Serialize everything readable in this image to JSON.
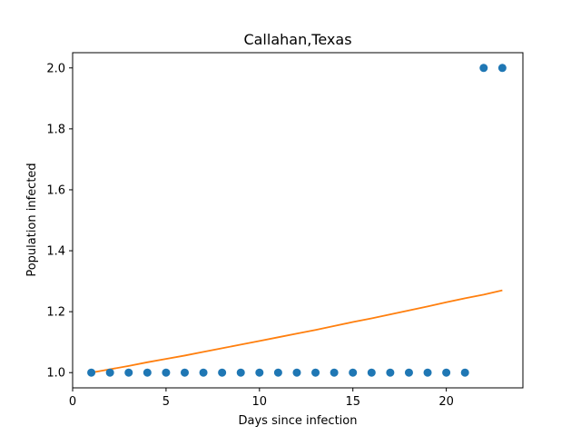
{
  "chart_data": {
    "type": "scatter",
    "title": "Callahan,Texas",
    "xlabel": "Days since infection",
    "ylabel": "Population infected",
    "xlim": [
      0,
      24.1
    ],
    "ylim": [
      0.95,
      2.05
    ],
    "xticks": [
      0,
      5,
      10,
      15,
      20
    ],
    "yticks": [
      1.0,
      1.2,
      1.4,
      1.6,
      1.8,
      2.0
    ],
    "xtick_labels": [
      "0",
      "5",
      "10",
      "15",
      "20"
    ],
    "ytick_labels": [
      "1.0",
      "1.2",
      "1.4",
      "1.6",
      "1.8",
      "2.0"
    ],
    "grid": false,
    "series": [
      {
        "kind": "scatter",
        "color": "#1f77b4",
        "x": [
          1,
          2,
          3,
          4,
          5,
          6,
          7,
          8,
          9,
          10,
          11,
          12,
          13,
          14,
          15,
          16,
          17,
          18,
          19,
          20,
          21,
          22,
          23
        ],
        "y": [
          1,
          1,
          1,
          1,
          1,
          1,
          1,
          1,
          1,
          1,
          1,
          1,
          1,
          1,
          1,
          1,
          1,
          1,
          1,
          1,
          1,
          2,
          2
        ]
      },
      {
        "kind": "line",
        "color": "#ff7f0e",
        "x": [
          1,
          2,
          3,
          4,
          5,
          6,
          7,
          8,
          9,
          10,
          11,
          12,
          13,
          14,
          15,
          16,
          17,
          18,
          19,
          20,
          21,
          22,
          23
        ],
        "y": [
          1.0,
          1.011,
          1.022,
          1.034,
          1.045,
          1.056,
          1.068,
          1.08,
          1.092,
          1.104,
          1.116,
          1.128,
          1.14,
          1.153,
          1.166,
          1.178,
          1.191,
          1.204,
          1.217,
          1.231,
          1.244,
          1.256,
          1.27
        ]
      }
    ]
  }
}
